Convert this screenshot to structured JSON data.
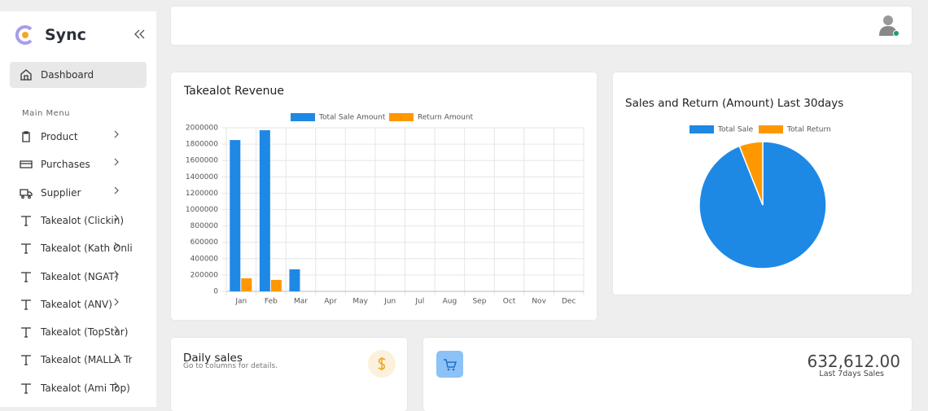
{
  "sidebar": {
    "brand": "Sync",
    "active_item": "Dashboard",
    "section_title": "Main Menu",
    "items": [
      "Product",
      "Purchases",
      "Supplier",
      "Takealot (Clickin)",
      "Takealot (Kath Onli",
      "Takealot (NGAT)",
      "Takealot (ANV)",
      "Takealot (TopStar)",
      "Takealot (MALLA Tr",
      "Takealot (Ami Top)"
    ]
  },
  "revenue_chart": {
    "type": "bar",
    "title": "Takealot Revenue",
    "categories": [
      "Jan",
      "Feb",
      "Mar",
      "Apr",
      "May",
      "Jun",
      "Jul",
      "Aug",
      "Sep",
      "Oct",
      "Nov",
      "Dec"
    ],
    "series": [
      {
        "name": "Total Sale Amount",
        "color": "#1e88e5",
        "values": [
          1850000,
          1970000,
          270000,
          0,
          0,
          0,
          0,
          0,
          0,
          0,
          0,
          0
        ]
      },
      {
        "name": "Return Amount",
        "color": "#ff9800",
        "values": [
          160000,
          140000,
          0,
          0,
          0,
          0,
          0,
          0,
          0,
          0,
          0,
          0
        ]
      }
    ],
    "ylim": [
      0,
      2000000
    ],
    "yticks": [
      0,
      200000,
      400000,
      600000,
      800000,
      1000000,
      1200000,
      1400000,
      1600000,
      1800000,
      2000000
    ],
    "grid": true
  },
  "pie_chart": {
    "type": "pie",
    "title": "Sales and Return (Amount) Last 30days",
    "series": [
      {
        "name": "Total Sale",
        "color": "#1e88e5",
        "value": 94
      },
      {
        "name": "Total Return",
        "color": "#ff9800",
        "value": 6
      }
    ]
  },
  "daily_sales": {
    "title": "Daily sales",
    "subtitle": "Go to columns for details."
  },
  "sales_card": {
    "amount": "632,612.00",
    "label": "Last 7days Sales"
  }
}
